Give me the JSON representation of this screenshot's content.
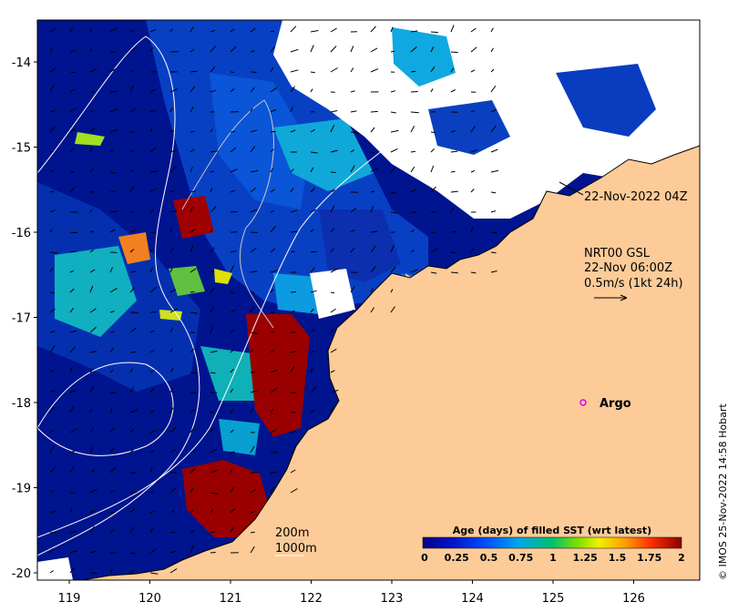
{
  "map": {
    "lon_ticks": [
      "119",
      "120",
      "121",
      "122",
      "123",
      "124",
      "125",
      "126"
    ],
    "lat_ticks": [
      "-14",
      "-15",
      "-16",
      "-17",
      "-18",
      "-19",
      "-20"
    ]
  },
  "annotations": {
    "obs_time": "22-Nov-2022 04Z",
    "current_source": "NRT00 GSL",
    "current_time": "22-Nov 06:00Z",
    "current_scale": "0.5m/s (1kt 24h)",
    "argo_label": "Argo",
    "contour_200": "200m",
    "contour_1000": "1000m"
  },
  "colorbar": {
    "title": "Age (days) of filled SST (wrt latest)",
    "ticks": [
      "0",
      "0.25",
      "0.5",
      "0.75",
      "1",
      "1.25",
      "1.5",
      "1.75",
      "2"
    ]
  },
  "copyright": "© IMOS 25-Nov-2022 14:58 Hobart",
  "colors": {
    "land": "#fccb98",
    "no_data": "#ffffff",
    "ocean_deep": "#00128f",
    "ocean_mid": "#0a3fc2",
    "age_max": "#9a0000",
    "argo": "#e000e0"
  }
}
